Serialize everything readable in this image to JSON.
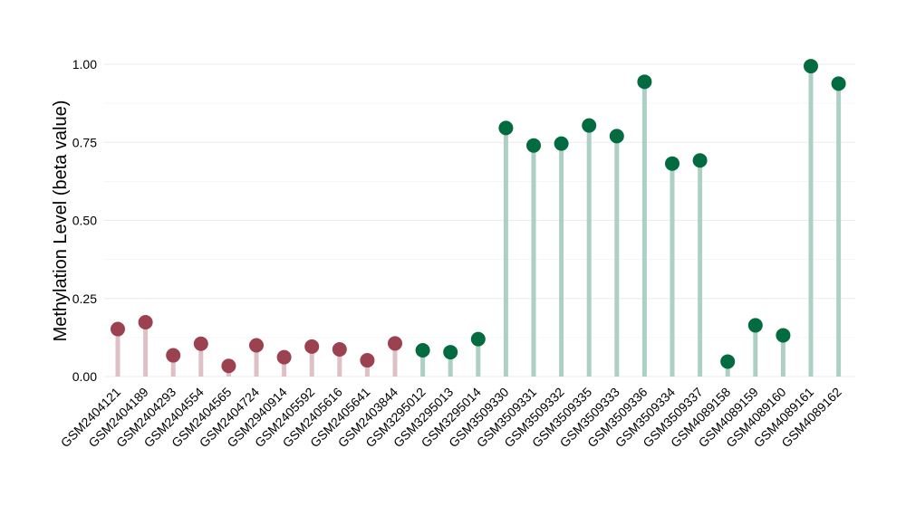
{
  "chart_data": {
    "type": "lollipop",
    "title": "",
    "xlabel": "",
    "ylabel": "Methylation Level (beta value)",
    "ylim": [
      0,
      1.0
    ],
    "yticks": [
      "0.00",
      "0.25",
      "0.50",
      "0.75",
      "1.00"
    ],
    "ytick_values": [
      0,
      0.25,
      0.5,
      0.75,
      1.0
    ],
    "grid": true,
    "legend": "none",
    "colors": {
      "group_a_point": "#9c4150",
      "group_a_stem": "#dfc0c6",
      "group_b_point": "#036b40",
      "group_b_stem": "#aecfc3",
      "grid": "#ebebeb"
    },
    "categories": [
      "GSM2404121",
      "GSM2404189",
      "GSM2404293",
      "GSM2404554",
      "GSM2404565",
      "GSM2404724",
      "GSM2940914",
      "GSM2405592",
      "GSM2405616",
      "GSM2405641",
      "GSM2403844",
      "GSM3295012",
      "GSM3295013",
      "GSM3295014",
      "GSM3509330",
      "GSM3509331",
      "GSM3509332",
      "GSM3509335",
      "GSM3509333",
      "GSM3509336",
      "GSM3509334",
      "GSM3509337",
      "GSM4089158",
      "GSM4089159",
      "GSM4089160",
      "GSM4089161",
      "GSM4089162"
    ],
    "values": [
      0.152,
      0.174,
      0.068,
      0.105,
      0.034,
      0.1,
      0.062,
      0.096,
      0.087,
      0.052,
      0.106,
      0.084,
      0.078,
      0.12,
      0.796,
      0.74,
      0.746,
      0.804,
      0.77,
      0.944,
      0.682,
      0.692,
      0.048,
      0.164,
      0.132,
      0.994,
      0.938
    ],
    "groups": [
      "a",
      "a",
      "a",
      "a",
      "a",
      "a",
      "a",
      "a",
      "a",
      "a",
      "a",
      "b",
      "b",
      "b",
      "b",
      "b",
      "b",
      "b",
      "b",
      "b",
      "b",
      "b",
      "b",
      "b",
      "b",
      "b",
      "b"
    ]
  }
}
